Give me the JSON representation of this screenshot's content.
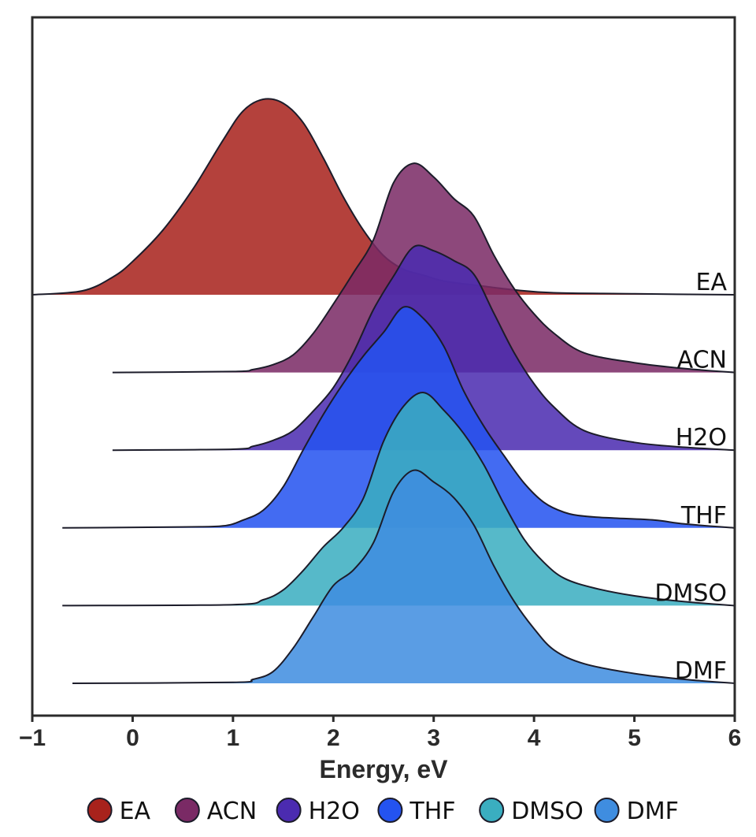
{
  "chart_data": {
    "type": "area",
    "subtype": "ridgeline",
    "xlabel": "Energy, eV",
    "xlim": [
      -1,
      6
    ],
    "xticks": [
      "−1",
      "0",
      "1",
      "2",
      "3",
      "4",
      "5",
      "6"
    ],
    "xtick_values": [
      -1,
      0,
      1,
      2,
      3,
      4,
      5,
      6
    ],
    "legend_position": "bottom",
    "grid": false,
    "series": [
      {
        "name": "EA",
        "color": "#a8221c",
        "points": [
          [
            -1.0,
            0.0
          ],
          [
            -0.5,
            0.02
          ],
          [
            -0.2,
            0.09
          ],
          [
            0.0,
            0.17
          ],
          [
            0.3,
            0.33
          ],
          [
            0.6,
            0.54
          ],
          [
            0.9,
            0.79
          ],
          [
            1.1,
            0.94
          ],
          [
            1.3,
            1.0
          ],
          [
            1.5,
            0.98
          ],
          [
            1.7,
            0.88
          ],
          [
            1.9,
            0.7
          ],
          [
            2.1,
            0.5
          ],
          [
            2.3,
            0.33
          ],
          [
            2.5,
            0.2
          ],
          [
            2.7,
            0.13
          ],
          [
            2.9,
            0.1
          ],
          [
            3.1,
            0.07
          ],
          [
            3.4,
            0.05
          ],
          [
            3.8,
            0.025
          ],
          [
            4.2,
            0.01
          ],
          [
            5.0,
            0.005
          ],
          [
            6.0,
            0.0
          ]
        ]
      },
      {
        "name": "ACN",
        "color": "#7a2a65",
        "points": [
          [
            -0.2,
            0.0
          ],
          [
            1.0,
            0.005
          ],
          [
            1.2,
            0.015
          ],
          [
            1.4,
            0.04
          ],
          [
            1.6,
            0.09
          ],
          [
            1.8,
            0.2
          ],
          [
            2.0,
            0.35
          ],
          [
            2.2,
            0.51
          ],
          [
            2.4,
            0.68
          ],
          [
            2.6,
            0.97
          ],
          [
            2.8,
            1.07
          ],
          [
            3.0,
            1.0
          ],
          [
            3.2,
            0.89
          ],
          [
            3.4,
            0.8
          ],
          [
            3.6,
            0.6
          ],
          [
            3.8,
            0.43
          ],
          [
            4.0,
            0.3
          ],
          [
            4.2,
            0.2
          ],
          [
            4.5,
            0.1
          ],
          [
            5.0,
            0.05
          ],
          [
            5.5,
            0.02
          ],
          [
            6.0,
            0.0
          ]
        ]
      },
      {
        "name": "H2O",
        "color": "#4b2bb0",
        "points": [
          [
            -0.2,
            0.0
          ],
          [
            1.0,
            0.005
          ],
          [
            1.2,
            0.02
          ],
          [
            1.4,
            0.05
          ],
          [
            1.6,
            0.1
          ],
          [
            1.8,
            0.2
          ],
          [
            2.0,
            0.32
          ],
          [
            2.2,
            0.5
          ],
          [
            2.4,
            0.72
          ],
          [
            2.6,
            0.89
          ],
          [
            2.8,
            1.04
          ],
          [
            3.0,
            1.02
          ],
          [
            3.2,
            0.97
          ],
          [
            3.4,
            0.9
          ],
          [
            3.6,
            0.7
          ],
          [
            3.8,
            0.5
          ],
          [
            4.0,
            0.34
          ],
          [
            4.2,
            0.22
          ],
          [
            4.5,
            0.1
          ],
          [
            5.0,
            0.04
          ],
          [
            5.5,
            0.015
          ],
          [
            6.0,
            0.0
          ]
        ]
      },
      {
        "name": "THF",
        "color": "#2453f0",
        "points": [
          [
            -0.7,
            0.0
          ],
          [
            0.5,
            0.005
          ],
          [
            0.9,
            0.01
          ],
          [
            1.1,
            0.04
          ],
          [
            1.3,
            0.09
          ],
          [
            1.5,
            0.21
          ],
          [
            1.7,
            0.4
          ],
          [
            1.9,
            0.58
          ],
          [
            2.1,
            0.74
          ],
          [
            2.3,
            0.88
          ],
          [
            2.5,
            1.0
          ],
          [
            2.7,
            1.13
          ],
          [
            2.9,
            1.07
          ],
          [
            3.1,
            0.93
          ],
          [
            3.3,
            0.7
          ],
          [
            3.5,
            0.52
          ],
          [
            3.7,
            0.37
          ],
          [
            3.9,
            0.23
          ],
          [
            4.1,
            0.13
          ],
          [
            4.3,
            0.08
          ],
          [
            4.5,
            0.06
          ],
          [
            4.8,
            0.05
          ],
          [
            5.2,
            0.04
          ],
          [
            5.5,
            0.02
          ],
          [
            6.0,
            0.0
          ]
        ]
      },
      {
        "name": "DMSO",
        "color": "#3aaec0",
        "points": [
          [
            -0.7,
            0.0
          ],
          [
            1.0,
            0.005
          ],
          [
            1.3,
            0.03
          ],
          [
            1.5,
            0.08
          ],
          [
            1.7,
            0.18
          ],
          [
            1.9,
            0.3
          ],
          [
            2.1,
            0.4
          ],
          [
            2.3,
            0.55
          ],
          [
            2.5,
            0.84
          ],
          [
            2.7,
            1.02
          ],
          [
            2.9,
            1.09
          ],
          [
            3.1,
            1.0
          ],
          [
            3.3,
            0.88
          ],
          [
            3.5,
            0.72
          ],
          [
            3.7,
            0.52
          ],
          [
            3.9,
            0.34
          ],
          [
            4.1,
            0.22
          ],
          [
            4.3,
            0.14
          ],
          [
            4.6,
            0.09
          ],
          [
            5.0,
            0.05
          ],
          [
            5.5,
            0.02
          ],
          [
            6.0,
            0.0
          ]
        ]
      },
      {
        "name": "DMF",
        "color": "#3f8de0",
        "points": [
          [
            -0.6,
            0.0
          ],
          [
            1.0,
            0.005
          ],
          [
            1.2,
            0.02
          ],
          [
            1.4,
            0.06
          ],
          [
            1.6,
            0.18
          ],
          [
            1.8,
            0.34
          ],
          [
            2.0,
            0.5
          ],
          [
            2.2,
            0.58
          ],
          [
            2.4,
            0.72
          ],
          [
            2.6,
            0.98
          ],
          [
            2.8,
            1.09
          ],
          [
            3.0,
            1.03
          ],
          [
            3.2,
            0.95
          ],
          [
            3.4,
            0.81
          ],
          [
            3.6,
            0.6
          ],
          [
            3.8,
            0.42
          ],
          [
            4.0,
            0.28
          ],
          [
            4.2,
            0.17
          ],
          [
            4.5,
            0.1
          ],
          [
            5.0,
            0.05
          ],
          [
            5.5,
            0.02
          ],
          [
            6.0,
            0.0
          ]
        ]
      }
    ]
  }
}
